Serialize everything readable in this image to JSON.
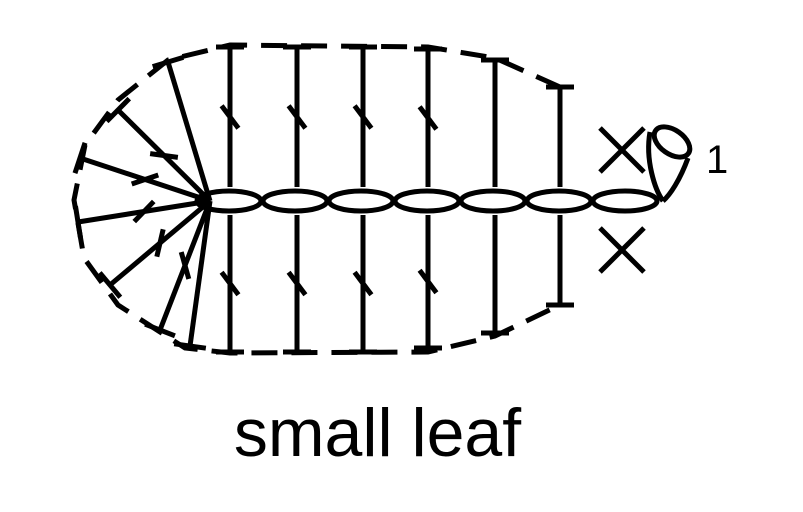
{
  "diagram": {
    "caption": "small leaf",
    "round_label": "1",
    "stitches": {
      "foundation_chain_count": 7,
      "double_crochet_top_count": 6,
      "double_crochet_bottom_count": 6,
      "treble_crochet_top_count": 3,
      "treble_crochet_bottom_count": 3,
      "fan_stitch_count": 5,
      "single_crochet_count": 2,
      "slip_stitch_count": 1
    },
    "colors": {
      "ink": "#000000",
      "background": "#ffffff"
    }
  }
}
